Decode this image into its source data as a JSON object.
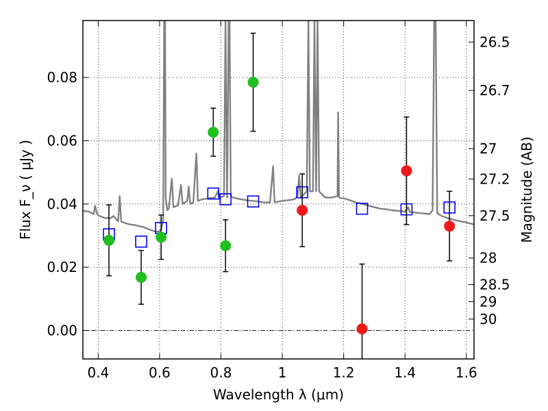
{
  "chart_data": {
    "type": "scatter",
    "title": "",
    "xlabel": "Wavelength  λ (μm)",
    "ylabel": "Flux  F_ν  ( μJy )",
    "ylabel_right": "Magnitude (AB)",
    "xlim": [
      0.35,
      1.625
    ],
    "ylim": [
      -0.009,
      0.098
    ],
    "grid": true,
    "x_ticks": [
      0.4,
      0.6,
      0.8,
      1.0,
      1.2,
      1.4,
      1.6
    ],
    "x_tick_labels": [
      "0.4",
      "0.6",
      "0.8",
      "1",
      "1.2",
      "1.4",
      "1.6"
    ],
    "y_ticks": [
      0.0,
      0.02,
      0.04,
      0.06,
      0.08
    ],
    "y_tick_labels": [
      "0.00",
      "0.02",
      "0.04",
      "0.06",
      "0.08"
    ],
    "mag_ticks": [
      {
        "label": "26.5",
        "flux": 0.0912
      },
      {
        "label": "26.7",
        "flux": 0.0759
      },
      {
        "label": "27",
        "flux": 0.0575
      },
      {
        "label": "27.2",
        "flux": 0.0479
      },
      {
        "label": "27.5",
        "flux": 0.0363
      },
      {
        "label": "28",
        "flux": 0.0229
      },
      {
        "label": "28.5",
        "flux": 0.0145
      },
      {
        "label": "29",
        "flux": 0.0091
      },
      {
        "label": "30",
        "flux": 0.0036
      }
    ],
    "zero_line": 0.0,
    "series": [
      {
        "kind": "spectrum",
        "color": "#808080",
        "points": [
          [
            0.35,
            0.0378
          ],
          [
            0.37,
            0.0376
          ],
          [
            0.385,
            0.0368
          ],
          [
            0.39,
            0.0394
          ],
          [
            0.395,
            0.0372
          ],
          [
            0.4,
            0.0364
          ],
          [
            0.42,
            0.0356
          ],
          [
            0.44,
            0.0355
          ],
          [
            0.45,
            0.0362
          ],
          [
            0.46,
            0.035
          ],
          [
            0.465,
            0.0345
          ],
          [
            0.47,
            0.0425
          ],
          [
            0.475,
            0.0344
          ],
          [
            0.5,
            0.0336
          ],
          [
            0.52,
            0.0333
          ],
          [
            0.55,
            0.0326
          ],
          [
            0.57,
            0.0318
          ],
          [
            0.59,
            0.0312
          ],
          [
            0.6,
            0.0314
          ],
          [
            0.605,
            0.0318
          ],
          [
            0.61,
            0.034
          ],
          [
            0.612,
            0.036
          ],
          [
            0.615,
            0.098
          ],
          [
            0.618,
            0.098
          ],
          [
            0.62,
            0.042
          ],
          [
            0.625,
            0.038
          ],
          [
            0.63,
            0.0385
          ],
          [
            0.64,
            0.048
          ],
          [
            0.645,
            0.039
          ],
          [
            0.66,
            0.0395
          ],
          [
            0.67,
            0.046
          ],
          [
            0.675,
            0.04
          ],
          [
            0.69,
            0.041
          ],
          [
            0.695,
            0.0455
          ],
          [
            0.7,
            0.04
          ],
          [
            0.71,
            0.0405
          ],
          [
            0.72,
            0.056
          ],
          [
            0.725,
            0.041
          ],
          [
            0.74,
            0.0415
          ],
          [
            0.76,
            0.0418
          ],
          [
            0.78,
            0.042
          ],
          [
            0.79,
            0.044
          ],
          [
            0.795,
            0.042
          ],
          [
            0.81,
            0.0425
          ],
          [
            0.815,
            0.098
          ],
          [
            0.82,
            0.042
          ],
          [
            0.822,
            0.06
          ],
          [
            0.825,
            0.098
          ],
          [
            0.828,
            0.098
          ],
          [
            0.832,
            0.0425
          ],
          [
            0.84,
            0.042
          ],
          [
            0.86,
            0.0416
          ],
          [
            0.88,
            0.0412
          ],
          [
            0.9,
            0.041
          ],
          [
            0.92,
            0.0408
          ],
          [
            0.94,
            0.0405
          ],
          [
            0.96,
            0.0405
          ],
          [
            0.97,
            0.052
          ],
          [
            0.975,
            0.0405
          ],
          [
            1.0,
            0.041
          ],
          [
            1.02,
            0.0412
          ],
          [
            1.04,
            0.0415
          ],
          [
            1.05,
            0.0425
          ],
          [
            1.055,
            0.049
          ],
          [
            1.06,
            0.042
          ],
          [
            1.08,
            0.044
          ],
          [
            1.085,
            0.098
          ],
          [
            1.09,
            0.044
          ],
          [
            1.1,
            0.044
          ],
          [
            1.105,
            0.098
          ],
          [
            1.11,
            0.044
          ],
          [
            1.115,
            0.098
          ],
          [
            1.12,
            0.044
          ],
          [
            1.14,
            0.042
          ],
          [
            1.16,
            0.042
          ],
          [
            1.18,
            0.0425
          ],
          [
            1.182,
            0.069
          ],
          [
            1.185,
            0.042
          ],
          [
            1.2,
            0.0418
          ],
          [
            1.22,
            0.0412
          ],
          [
            1.24,
            0.0405
          ],
          [
            1.26,
            0.04
          ],
          [
            1.28,
            0.0395
          ],
          [
            1.3,
            0.039
          ],
          [
            1.32,
            0.0385
          ],
          [
            1.34,
            0.0383
          ],
          [
            1.36,
            0.038
          ],
          [
            1.38,
            0.0378
          ],
          [
            1.4,
            0.0376
          ],
          [
            1.41,
            0.039
          ],
          [
            1.415,
            0.0375
          ],
          [
            1.44,
            0.0372
          ],
          [
            1.46,
            0.037
          ],
          [
            1.48,
            0.0368
          ],
          [
            1.49,
            0.038
          ],
          [
            1.495,
            0.098
          ],
          [
            1.5,
            0.098
          ],
          [
            1.505,
            0.037
          ],
          [
            1.52,
            0.0362
          ],
          [
            1.54,
            0.0355
          ],
          [
            1.56,
            0.035
          ],
          [
            1.58,
            0.0345
          ],
          [
            1.6,
            0.0342
          ],
          [
            1.625,
            0.0335
          ]
        ]
      },
      {
        "kind": "model-photometry",
        "color": "#0000ff",
        "points": [
          [
            0.435,
            0.0304
          ],
          [
            0.54,
            0.0281
          ],
          [
            0.605,
            0.0324
          ],
          [
            0.775,
            0.0433
          ],
          [
            0.815,
            0.0415
          ],
          [
            0.905,
            0.0408
          ],
          [
            1.065,
            0.0437
          ],
          [
            1.26,
            0.0385
          ],
          [
            1.405,
            0.0383
          ],
          [
            1.545,
            0.0389
          ]
        ]
      },
      {
        "kind": "observed",
        "color": "#1fbf1f",
        "points": [
          [
            0.435,
            0.0285
          ],
          [
            0.54,
            0.0168
          ],
          [
            0.605,
            0.0295
          ],
          [
            0.775,
            0.0627
          ],
          [
            0.815,
            0.0268
          ],
          [
            0.905,
            0.0785
          ]
        ],
        "errors": [
          0.0112,
          0.0085,
          0.007,
          0.0076,
          0.0082,
          0.0155
        ]
      },
      {
        "kind": "observed",
        "color": "#ee1a1a",
        "points": [
          [
            1.065,
            0.038
          ],
          [
            1.26,
            0.0005
          ],
          [
            1.405,
            0.0505
          ],
          [
            1.545,
            0.033
          ]
        ],
        "errors": [
          0.0115,
          0.0205,
          0.017,
          0.011
        ]
      }
    ]
  }
}
